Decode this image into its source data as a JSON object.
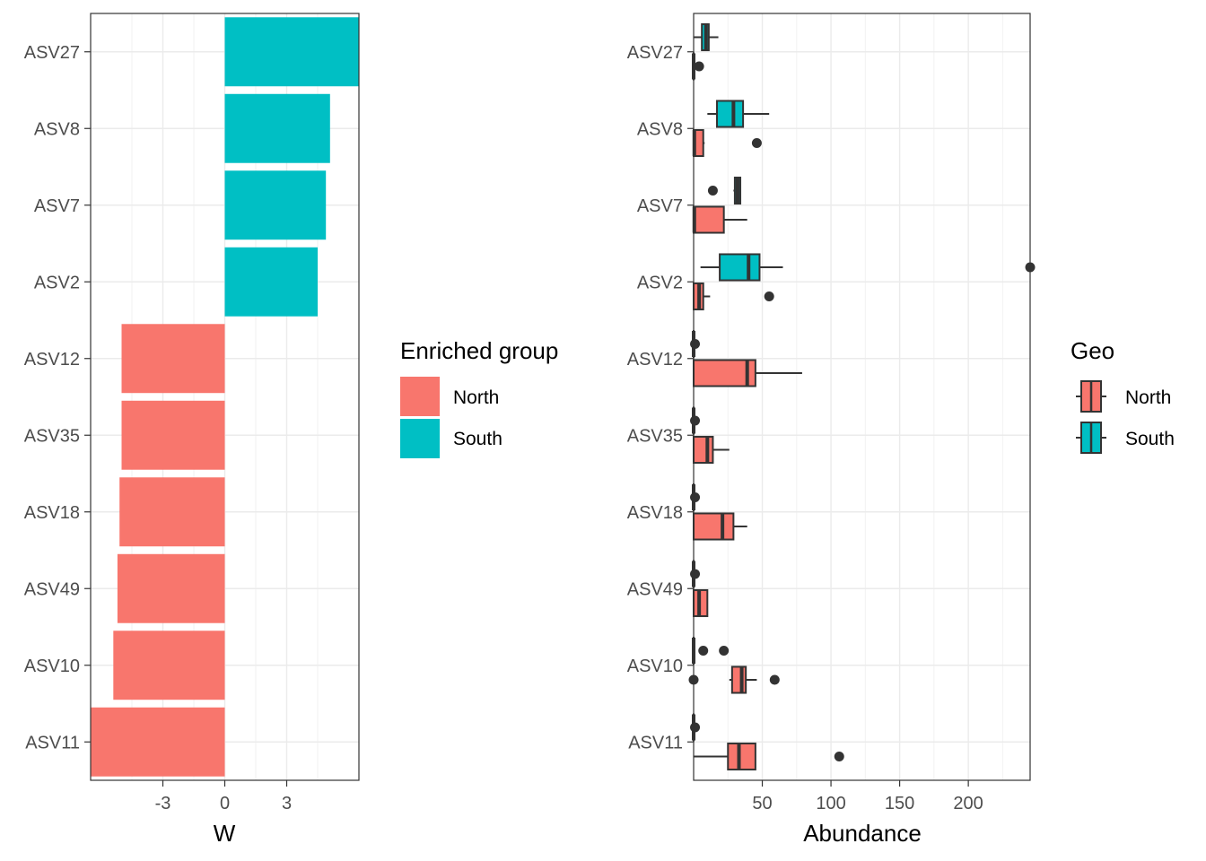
{
  "chart_data": [
    {
      "type": "bar",
      "orientation": "horizontal",
      "categories": [
        "ASV27",
        "ASV8",
        "ASV7",
        "ASV2",
        "ASV12",
        "ASV35",
        "ASV18",
        "ASV49",
        "ASV10",
        "ASV11"
      ],
      "values": [
        6.5,
        5.1,
        4.9,
        4.5,
        -5.0,
        -5.0,
        -5.1,
        -5.2,
        -5.4,
        -6.5
      ],
      "groups": [
        "South",
        "South",
        "South",
        "South",
        "North",
        "North",
        "North",
        "North",
        "North",
        "North"
      ],
      "xlabel": "W",
      "ylabel": "",
      "xlim": [
        -6.5,
        6.5
      ],
      "xticks": [
        "-3",
        "0",
        "3"
      ],
      "xtick_values": [
        -3,
        0,
        3
      ],
      "grid": true,
      "legend": {
        "title": "Enriched group",
        "position": "right",
        "entries": [
          {
            "label": "North",
            "color": "#F8766D"
          },
          {
            "label": "South",
            "color": "#00BFC4"
          }
        ]
      }
    },
    {
      "type": "boxplot",
      "orientation": "horizontal",
      "categories": [
        "ASV27",
        "ASV8",
        "ASV7",
        "ASV2",
        "ASV12",
        "ASV35",
        "ASV18",
        "ASV49",
        "ASV10",
        "ASV11"
      ],
      "xlabel": "Abundance",
      "ylabel": "",
      "xlim": [
        0,
        245
      ],
      "xticks": [
        "50",
        "100",
        "150",
        "200"
      ],
      "xtick_values": [
        50,
        100,
        150,
        200
      ],
      "grid": true,
      "series": [
        {
          "name": "North",
          "color": "#F8766D",
          "boxes": [
            {
              "category": "ASV27",
              "whisker_low": 0,
              "q1": 0,
              "median": 0,
              "q3": 0,
              "whisker_high": 0,
              "outliers": [
                4
              ]
            },
            {
              "category": "ASV8",
              "whisker_low": 0,
              "q1": 0,
              "median": 0.5,
              "q3": 7,
              "whisker_high": 8,
              "outliers": [
                46
              ]
            },
            {
              "category": "ASV7",
              "whisker_low": 0,
              "q1": 0,
              "median": 0.5,
              "q3": 22,
              "whisker_high": 39,
              "outliers": []
            },
            {
              "category": "ASV2",
              "whisker_low": 0,
              "q1": 0,
              "median": 4,
              "q3": 7,
              "whisker_high": 12,
              "outliers": [
                55
              ]
            },
            {
              "category": "ASV12",
              "whisker_low": 0,
              "q1": 0,
              "median": 39,
              "q3": 45,
              "whisker_high": 79,
              "outliers": []
            },
            {
              "category": "ASV35",
              "whisker_low": 0,
              "q1": 0,
              "median": 10,
              "q3": 14,
              "whisker_high": 26,
              "outliers": []
            },
            {
              "category": "ASV18",
              "whisker_low": 0,
              "q1": 0,
              "median": 21,
              "q3": 29,
              "whisker_high": 39,
              "outliers": []
            },
            {
              "category": "ASV49",
              "whisker_low": 0,
              "q1": 0,
              "median": 4,
              "q3": 10,
              "whisker_high": 10,
              "outliers": []
            },
            {
              "category": "ASV10",
              "whisker_low": 26,
              "q1": 28,
              "median": 35,
              "q3": 38,
              "whisker_high": 46,
              "outliers": [
                59,
                0
              ]
            },
            {
              "category": "ASV11",
              "whisker_low": 0,
              "q1": 25,
              "median": 33,
              "q3": 45,
              "whisker_high": 45,
              "outliers": [
                106
              ]
            }
          ]
        },
        {
          "name": "South",
          "color": "#00BFC4",
          "boxes": [
            {
              "category": "ASV27",
              "whisker_low": 0,
              "q1": 6,
              "median": 9,
              "q3": 11,
              "whisker_high": 18,
              "outliers": []
            },
            {
              "category": "ASV8",
              "whisker_low": 10,
              "q1": 17,
              "median": 29,
              "q3": 36,
              "whisker_high": 55,
              "outliers": []
            },
            {
              "category": "ASV7",
              "whisker_low": 29,
              "q1": 30,
              "median": 32,
              "q3": 34,
              "whisker_high": 34,
              "outliers": [
                14
              ]
            },
            {
              "category": "ASV2",
              "whisker_low": 5,
              "q1": 19,
              "median": 40,
              "q3": 48,
              "whisker_high": 65,
              "outliers": [
                245
              ]
            },
            {
              "category": "ASV12",
              "whisker_low": 0,
              "q1": 0,
              "median": 0,
              "q3": 0,
              "whisker_high": 0,
              "outliers": [
                1
              ]
            },
            {
              "category": "ASV35",
              "whisker_low": 0,
              "q1": 0,
              "median": 0,
              "q3": 0,
              "whisker_high": 0,
              "outliers": [
                1
              ]
            },
            {
              "category": "ASV18",
              "whisker_low": 0,
              "q1": 0,
              "median": 0,
              "q3": 0,
              "whisker_high": 0,
              "outliers": [
                1
              ]
            },
            {
              "category": "ASV49",
              "whisker_low": 0,
              "q1": 0,
              "median": 0,
              "q3": 0,
              "whisker_high": 0,
              "outliers": [
                1
              ]
            },
            {
              "category": "ASV10",
              "whisker_low": 0,
              "q1": 0,
              "median": 0,
              "q3": 0,
              "whisker_high": 0,
              "outliers": [
                7,
                22
              ]
            },
            {
              "category": "ASV11",
              "whisker_low": 0,
              "q1": 0,
              "median": 0,
              "q3": 0,
              "whisker_high": 0,
              "outliers": [
                1
              ]
            }
          ]
        }
      ],
      "legend": {
        "title": "Geo",
        "position": "right",
        "entries": [
          {
            "label": "North",
            "color": "#F8766D"
          },
          {
            "label": "South",
            "color": "#00BFC4"
          }
        ]
      }
    }
  ]
}
